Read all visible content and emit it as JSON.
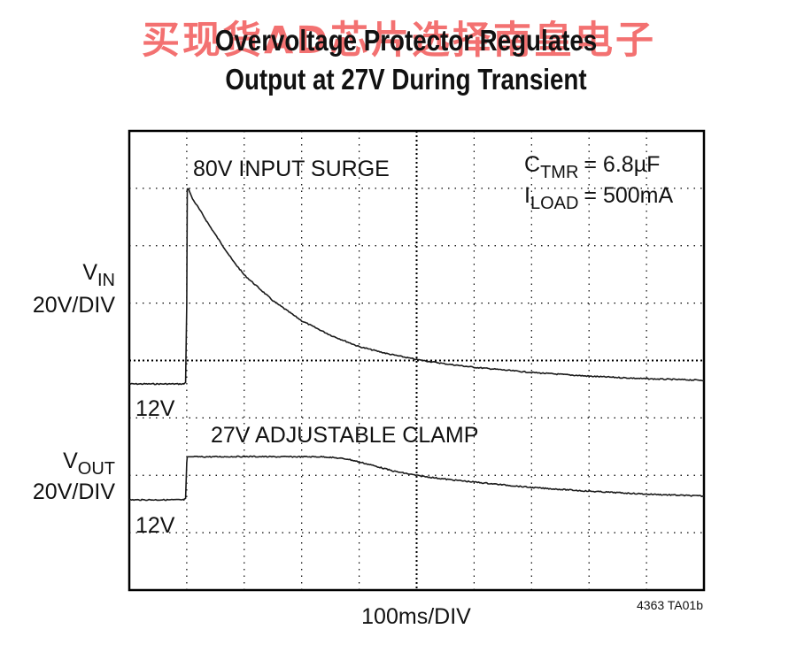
{
  "title": {
    "line1": "Overvoltage Protector Regulates",
    "line2": "Output at 27V During Transient"
  },
  "watermark": "买现货AD芯片选择南皇电子",
  "figure_id": "4363 TA01b",
  "chart_data": {
    "type": "line",
    "grid": true,
    "grid_style": "dotted, 10 x 8 divisions",
    "xlabel": "100ms/DIV",
    "x_unit": "ms",
    "xlim": [
      0,
      1000
    ],
    "annotations": {
      "vin_event": "80V INPUT SURGE",
      "vout_event": "27V ADJUSTABLE CLAMP",
      "conditions": [
        {
          "symbol": "C",
          "subscript": "TMR",
          "value": "= 6.8µF"
        },
        {
          "symbol": "I",
          "subscript": "LOAD",
          "value": "= 500mA"
        }
      ]
    },
    "channels": [
      {
        "id": "vin",
        "label_symbol": "V",
        "label_subscript": "IN",
        "scale": "20V/DIV",
        "baseline_label": "12V",
        "baseline_v": 12,
        "color": "#1a1a1a",
        "x": [
          0,
          95,
          98,
          100,
          101,
          103,
          105,
          110,
          120,
          140,
          160,
          180,
          200,
          250,
          300,
          350,
          400,
          450,
          500,
          550,
          600,
          700,
          800,
          900,
          1000
        ],
        "y": [
          12,
          12,
          12.5,
          40,
          80,
          80,
          79,
          76.5,
          73.5,
          67,
          61,
          55,
          50,
          41,
          34,
          29,
          25,
          22.5,
          20.5,
          19,
          17.8,
          16,
          14.7,
          13.8,
          13.3
        ]
      },
      {
        "id": "vout",
        "label_symbol": "V",
        "label_subscript": "OUT",
        "scale": "20V/DIV",
        "baseline_label": "12V",
        "baseline_v": 12,
        "color": "#1a1a1a",
        "x": [
          0,
          95,
          98,
          100,
          101,
          105,
          110,
          150,
          200,
          250,
          300,
          340,
          380,
          420,
          460,
          500,
          550,
          600,
          700,
          800,
          900,
          1000
        ],
        "y": [
          12,
          12,
          12.5,
          25,
          27,
          27,
          27,
          27,
          27.1,
          27,
          27,
          27,
          26.2,
          24.2,
          22,
          20.5,
          19.2,
          18.2,
          16.3,
          15,
          14,
          13.3
        ]
      }
    ]
  }
}
